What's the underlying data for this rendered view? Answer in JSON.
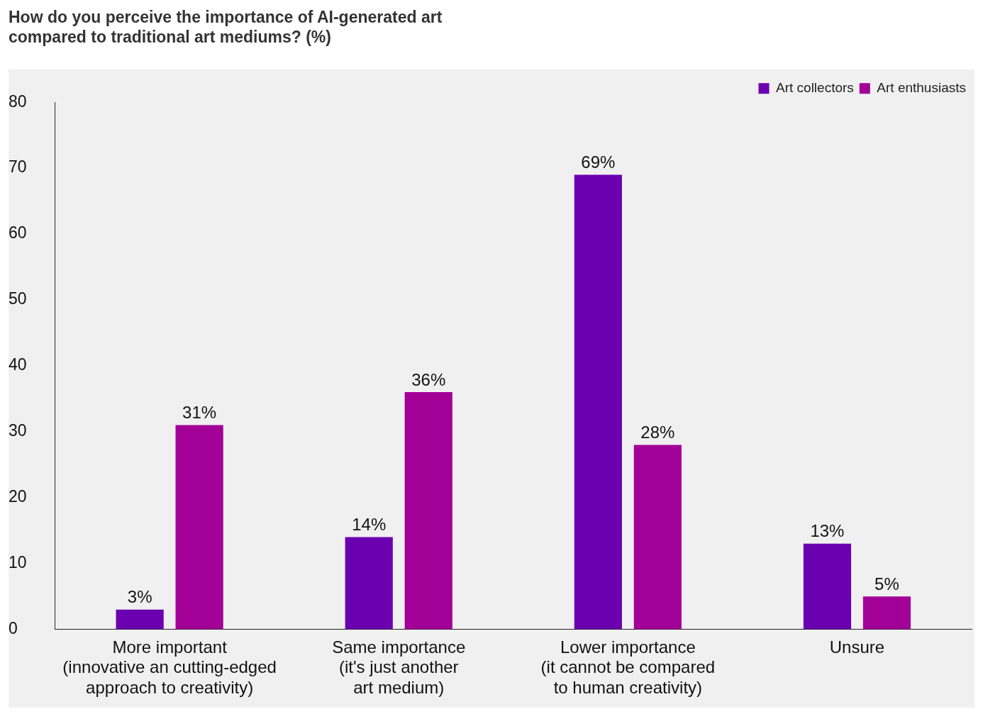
{
  "chart_data": {
    "type": "bar",
    "title": [
      "How do you perceive the importance of AI-generated art",
      "compared to traditional art mediums? (%)"
    ],
    "categories": [
      "More important\n(innovative an cutting-edged\napproach to creativity)",
      "Same importance\n(it's just another\nart medium)",
      "Lower importance\n(it cannot be compared\nto human creativity)",
      "Unsure"
    ],
    "series": [
      {
        "name": "Art collectors",
        "color": "#6a00b0",
        "values": [
          3,
          14,
          69,
          13
        ],
        "value_labels": [
          "3%",
          "14%",
          "69%",
          "13%"
        ]
      },
      {
        "name": "Art enthusiasts",
        "color": "#a30097",
        "values": [
          31,
          36,
          28,
          5
        ],
        "value_labels": [
          "31%",
          "36%",
          "28%",
          "5%"
        ]
      }
    ],
    "ylim": [
      0,
      80
    ],
    "yticks": [
      0,
      10,
      20,
      30,
      40,
      50,
      60,
      70,
      80
    ],
    "grid": false,
    "legend": "top right"
  }
}
